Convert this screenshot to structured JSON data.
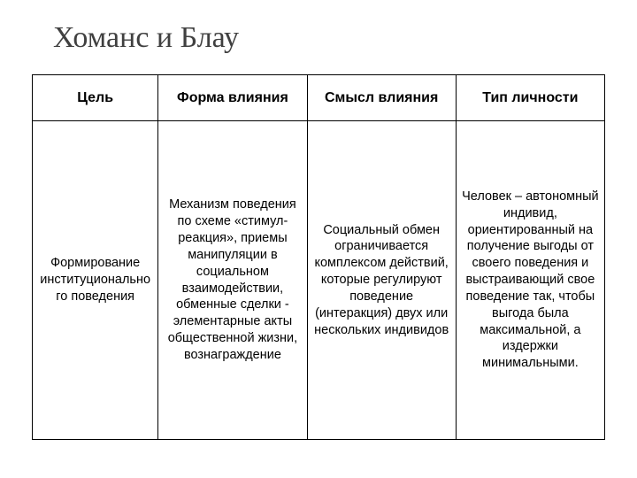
{
  "title": "Хоманс и Блау",
  "table": {
    "columns": [
      "Цель",
      "Форма влияния",
      "Смысл влияния",
      "Тип личности"
    ],
    "rows": [
      [
        "Формирование институционально го поведения",
        "Механизм поведения по схеме «стимул-реакция», приемы манипуляции в социальном взаимодействии, обменные сделки - элементарные акты общественной жизни, вознаграждение",
        "Социальный обмен ограничивается комплексом действий, которые регулируют поведение (интеракция) двух или нескольких индивидов",
        "Человек – автономный индивид, ориентированный на получение выгоды от своего поведения и выстраивающий свое поведение так, чтобы выгода была максимальной, а издержки минимальными."
      ]
    ],
    "column_widths_pct": [
      22,
      26,
      26,
      26
    ],
    "border_color": "#000000",
    "background_color": "#ffffff",
    "header_fontsize": 16,
    "cell_fontsize": 14.5,
    "title_fontsize": 34,
    "title_color": "#404040"
  }
}
